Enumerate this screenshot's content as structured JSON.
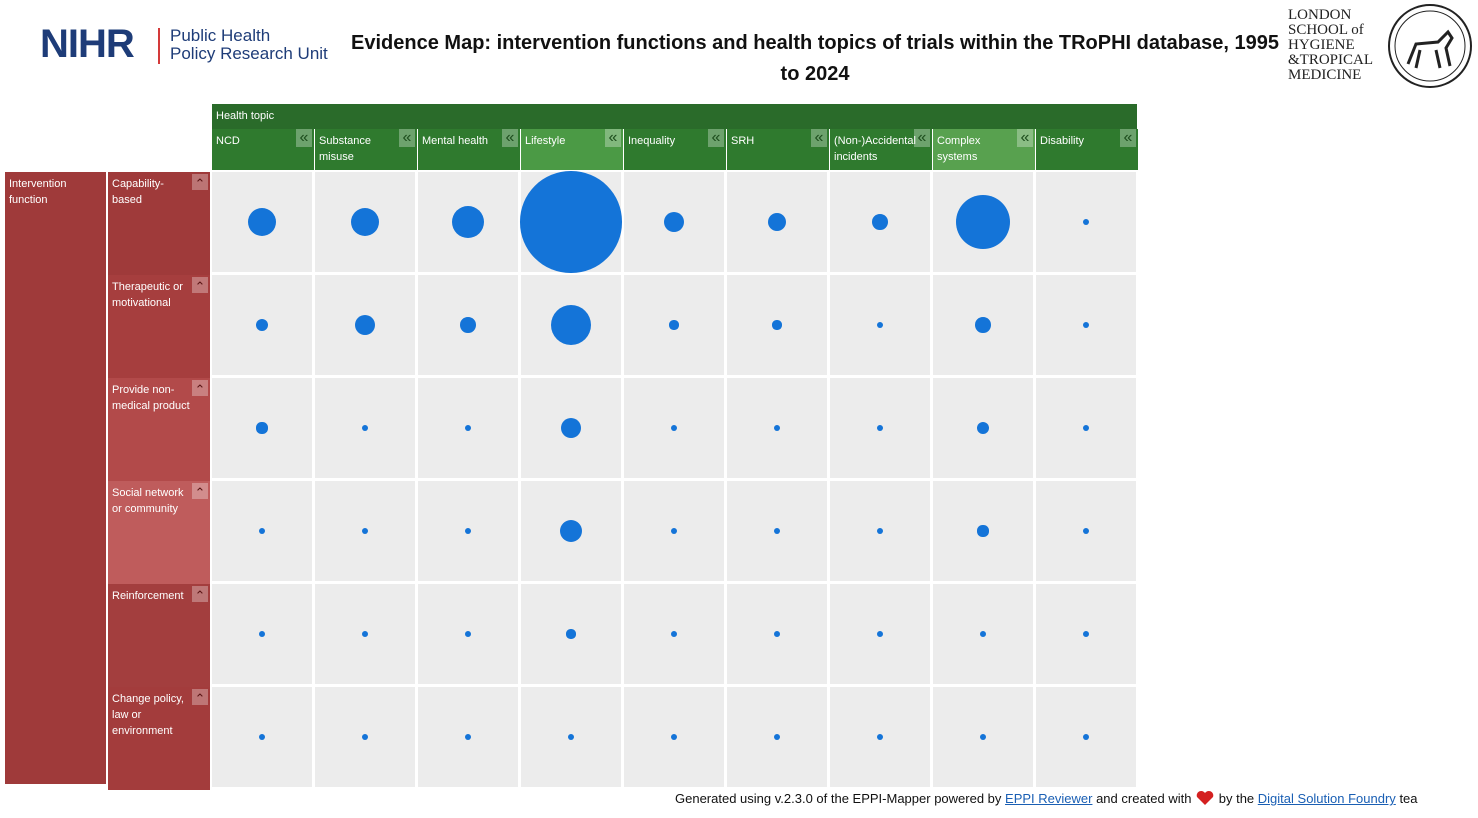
{
  "header": {
    "logo_left": "NIHR",
    "logo_left_sub": [
      "Public Health",
      "Policy Research Unit"
    ],
    "title": "Evidence Map: intervention functions and health topics of trials within the TRoPHI database, 1995 to 2024",
    "logo_right": [
      "LONDON",
      "SCHOOL of",
      "HYGIENE",
      "&TROPICAL",
      "MEDICINE"
    ]
  },
  "map": {
    "column_group": "Health topic",
    "columns": [
      "NCD",
      "Substance misuse",
      "Mental health",
      "Lifestyle",
      "Inequality",
      "SRH",
      "(Non-)Accidental incidents",
      "Complex systems",
      "Disability"
    ],
    "row_group": "Intervention function",
    "rows": [
      "Capability-based",
      "Therapeutic or motivational",
      "Provide non-medical product",
      "Social network or community",
      "Reinforcement",
      "Change policy, law or environment"
    ],
    "counts": [
      [
        20,
        20,
        26,
        250,
        10,
        8,
        6,
        73,
        1
      ],
      [
        4,
        10,
        6,
        39,
        2,
        2,
        1,
        6,
        1
      ],
      [
        3,
        1,
        1,
        10,
        1,
        1,
        1,
        4,
        1
      ],
      [
        1,
        1,
        1,
        12,
        1,
        1,
        1,
        3,
        1
      ],
      [
        1,
        1,
        1,
        2,
        1,
        1,
        1,
        1,
        1
      ],
      [
        1,
        1,
        1,
        1,
        1,
        1,
        1,
        1,
        1
      ]
    ],
    "color": "#1474d8"
  },
  "footer": {
    "text1": "Generated using v.2.3.0 of the EPPI-Mapper powered by",
    "link1": "EPPI Reviewer",
    "text2": "and created with",
    "text3": "by the",
    "link2": "Digital Solution Foundry",
    "text4": "tea"
  }
}
